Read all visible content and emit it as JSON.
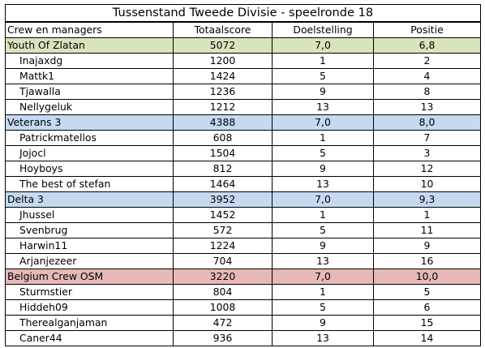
{
  "title": "Tussenstand Tweede Divisie - speelronde 18",
  "columns": {
    "name": "Crew en managers",
    "total": "Totaalscore",
    "goal": "Doelstelling",
    "position": "Positie"
  },
  "colors": {
    "youth": "#d8e4bc",
    "veterans": "#c5d9f1",
    "delta": "#c5d9f1",
    "belgium": "#e6b8b7"
  },
  "teams": [
    {
      "name": "Youth Of Zlatan",
      "total": "5072",
      "goal": "7,0",
      "position": "6,8",
      "players": [
        {
          "name": "Inajaxdg",
          "total": "1200",
          "goal": "1",
          "position": "2"
        },
        {
          "name": "Mattk1",
          "total": "1424",
          "goal": "5",
          "position": "4"
        },
        {
          "name": "Tjawalla",
          "total": "1236",
          "goal": "9",
          "position": "8"
        },
        {
          "name": "Nellygeluk",
          "total": "1212",
          "goal": "13",
          "position": "13"
        }
      ]
    },
    {
      "name": "Veterans 3",
      "total": "4388",
      "goal": "7,0",
      "position": "8,0",
      "players": [
        {
          "name": "Patrickmatellos",
          "total": "608",
          "goal": "1",
          "position": "7"
        },
        {
          "name": "Jojocl",
          "total": "1504",
          "goal": "5",
          "position": "3"
        },
        {
          "name": "Hoyboys",
          "total": "812",
          "goal": "9",
          "position": "12"
        },
        {
          "name": "The best of stefan",
          "total": "1464",
          "goal": "13",
          "position": "10"
        }
      ]
    },
    {
      "name": "Delta 3",
      "total": "3952",
      "goal": "7,0",
      "position": "9,3",
      "players": [
        {
          "name": "Jhussel",
          "total": "1452",
          "goal": "1",
          "position": "1"
        },
        {
          "name": "Svenbrug",
          "total": "572",
          "goal": "5",
          "position": "11"
        },
        {
          "name": "Harwin11",
          "total": "1224",
          "goal": "9",
          "position": "9"
        },
        {
          "name": "Arjanjezeer",
          "total": "704",
          "goal": "13",
          "position": "16"
        }
      ]
    },
    {
      "name": "Belgium Crew OSM",
      "total": "3220",
      "goal": "7,0",
      "position": "10,0",
      "players": [
        {
          "name": "Sturmstier",
          "total": "804",
          "goal": "1",
          "position": "5"
        },
        {
          "name": "Hiddeh09",
          "total": "1008",
          "goal": "5",
          "position": "6"
        },
        {
          "name": "Therealganjaman",
          "total": "472",
          "goal": "9",
          "position": "15"
        },
        {
          "name": "Caner44",
          "total": "936",
          "goal": "13",
          "position": "14"
        }
      ]
    }
  ]
}
